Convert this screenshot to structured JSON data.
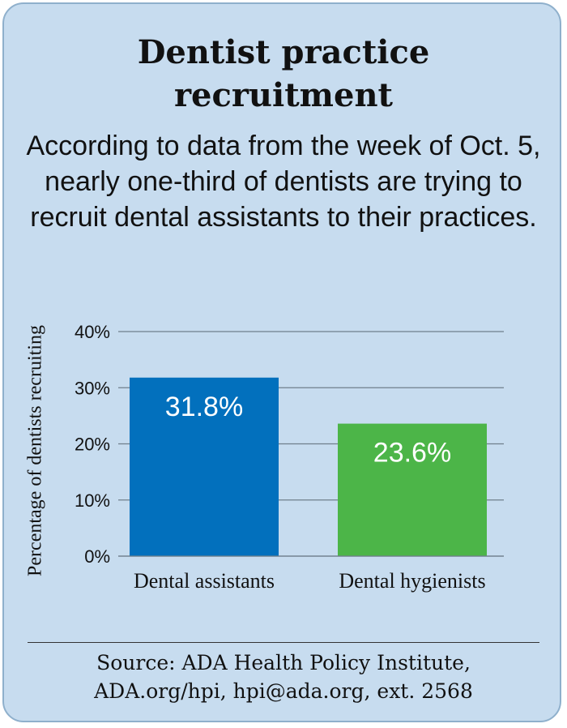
{
  "title_line1": "Dentist practice",
  "title_line2": "recruitment",
  "subtitle": "According to data from the week of Oct. 5, nearly one-third of dentists are trying to recruit dental assistants to their practices.",
  "source_line1": "Source: ADA Health Policy Institute,",
  "source_line2": "ADA.org/hpi, hpi@ada.org, ext. 2568",
  "colors": {
    "background": "#c7dcef",
    "border": "#8fb0cc",
    "bar_assistants": "#0270bd",
    "bar_hygienists": "#4cb548",
    "gridline": "#6f7f8c",
    "text": "#111111"
  },
  "chart_data": {
    "type": "bar",
    "categories": [
      "Dental assistants",
      "Dental hygienists"
    ],
    "values": [
      31.8,
      23.6
    ],
    "data_labels": [
      "31.8%",
      "23.6%"
    ],
    "ylabel": "Percentage of dentists recruiting",
    "xlabel": "",
    "ylim": [
      0,
      40
    ],
    "yticks": [
      0,
      10,
      20,
      30,
      40
    ],
    "ytick_labels": [
      "0%",
      "10%",
      "20%",
      "30%",
      "40%"
    ],
    "grid": true,
    "bar_colors": [
      "#0270bd",
      "#4cb548"
    ]
  }
}
